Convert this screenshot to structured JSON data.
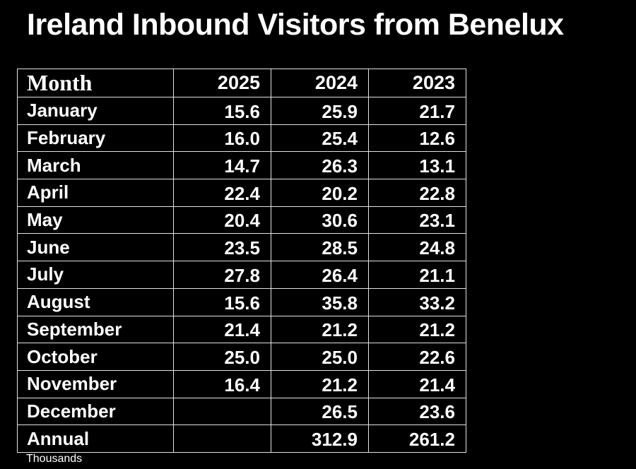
{
  "title": "Ireland Inbound Visitors from Benelux",
  "footnote": "Thousands",
  "colors": {
    "background": "#000000",
    "text": "#ffffff",
    "border": "#e3e3e3"
  },
  "table": {
    "columns": [
      "Month",
      "2025",
      "2024",
      "2023"
    ],
    "rows": [
      {
        "month": "January",
        "y2025": "15.6",
        "y2024": "25.9",
        "y2023": "21.7"
      },
      {
        "month": "February",
        "y2025": "16.0",
        "y2024": "25.4",
        "y2023": "12.6"
      },
      {
        "month": "March",
        "y2025": "14.7",
        "y2024": "26.3",
        "y2023": "13.1"
      },
      {
        "month": "April",
        "y2025": "22.4",
        "y2024": "20.2",
        "y2023": "22.8"
      },
      {
        "month": "May",
        "y2025": "20.4",
        "y2024": "30.6",
        "y2023": "23.1"
      },
      {
        "month": "June",
        "y2025": "23.5",
        "y2024": "28.5",
        "y2023": "24.8"
      },
      {
        "month": "July",
        "y2025": "27.8",
        "y2024": "26.4",
        "y2023": "21.1"
      },
      {
        "month": "August",
        "y2025": "15.6",
        "y2024": "35.8",
        "y2023": "33.2"
      },
      {
        "month": "September",
        "y2025": "21.4",
        "y2024": "21.2",
        "y2023": "21.2"
      },
      {
        "month": "October",
        "y2025": "25.0",
        "y2024": "25.0",
        "y2023": "22.6"
      },
      {
        "month": "November",
        "y2025": "16.4",
        "y2024": "21.2",
        "y2023": "21.4"
      },
      {
        "month": "December",
        "y2025": "",
        "y2024": "26.5",
        "y2023": "23.6"
      },
      {
        "month": "Annual",
        "y2025": "",
        "y2024": "312.9",
        "y2023": "261.2"
      }
    ]
  },
  "chart_data": {
    "type": "table",
    "title": "Ireland Inbound Visitors from Benelux",
    "unit": "Thousands",
    "categories": [
      "January",
      "February",
      "March",
      "April",
      "May",
      "June",
      "July",
      "August",
      "September",
      "October",
      "November",
      "December",
      "Annual"
    ],
    "series": [
      {
        "name": "2025",
        "values": [
          15.6,
          16.0,
          14.7,
          22.4,
          20.4,
          23.5,
          27.8,
          15.6,
          21.4,
          25.0,
          16.4,
          null,
          null
        ]
      },
      {
        "name": "2024",
        "values": [
          25.9,
          25.4,
          26.3,
          20.2,
          30.6,
          28.5,
          26.4,
          35.8,
          21.2,
          25.0,
          21.2,
          26.5,
          312.9
        ]
      },
      {
        "name": "2023",
        "values": [
          21.7,
          12.6,
          13.1,
          22.8,
          23.1,
          24.8,
          21.1,
          33.2,
          21.2,
          22.6,
          21.4,
          23.6,
          261.2
        ]
      }
    ]
  }
}
